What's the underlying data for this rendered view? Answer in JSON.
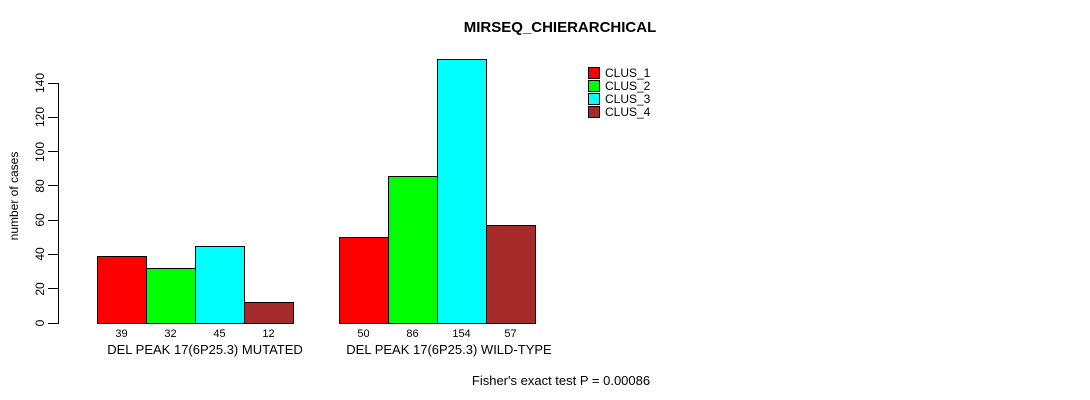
{
  "chart_data": {
    "type": "bar",
    "title": "MIRSEQ_CHIERARCHICAL",
    "ylabel": "number of cases",
    "xlabel": "",
    "categories": [
      "DEL PEAK 17(6P25.3) MUTATED",
      "DEL PEAK 17(6P25.3) WILD-TYPE"
    ],
    "series": [
      {
        "name": "CLUS_1",
        "color": "#FF0000",
        "values": [
          39,
          50
        ]
      },
      {
        "name": "CLUS_2",
        "color": "#00FF00",
        "values": [
          32,
          86
        ]
      },
      {
        "name": "CLUS_3",
        "color": "#00FFFF",
        "values": [
          45,
          154
        ]
      },
      {
        "name": "CLUS_4",
        "color": "#A52A2A",
        "values": [
          12,
          57
        ]
      }
    ],
    "bar_value_labels": [
      [
        39,
        32,
        45,
        12
      ],
      [
        50,
        86,
        154,
        57
      ]
    ],
    "yticks": [
      0,
      20,
      40,
      60,
      80,
      100,
      120,
      140
    ],
    "ylim": [
      0,
      154
    ],
    "grid": false,
    "legend_position": "top-right",
    "annotation": "Fisher's exact test P = 0.00086"
  }
}
